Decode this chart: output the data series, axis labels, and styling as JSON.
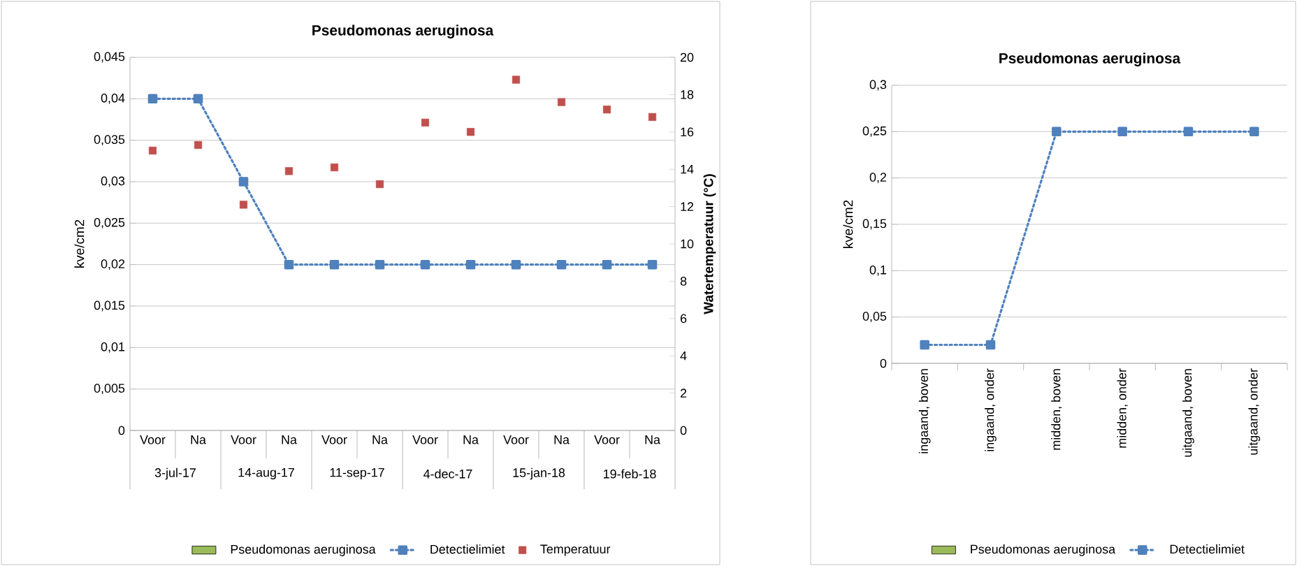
{
  "chart_data": [
    {
      "type": "line",
      "title": "Pseudomonas aeruginosa",
      "ylabel": "kve/cm2",
      "y2label": "Watertemperatuur (°C)",
      "categories": [
        "Voor",
        "Na",
        "Voor",
        "Na",
        "Voor",
        "Na",
        "Voor",
        "Na",
        "Voor",
        "Na",
        "Voor",
        "Na"
      ],
      "annotations": [
        "3-jul-17",
        "14-aug-17",
        "11-sep-17",
        "4-dec-17",
        "15-jan-18",
        "19-feb-18"
      ],
      "series": [
        {
          "name": "Pseudomonas aeruginosa",
          "type": "bar",
          "color": "#9bbb59",
          "values": [
            null,
            null,
            null,
            null,
            null,
            null,
            null,
            null,
            null,
            null,
            null,
            null
          ]
        },
        {
          "name": "Detectielimiet",
          "color": "#4f81bd",
          "marker": "square",
          "line_style": "dotted",
          "values": [
            0.04,
            0.04,
            0.03,
            0.02,
            0.02,
            0.02,
            0.02,
            0.02,
            0.02,
            0.02,
            0.02,
            0.02
          ]
        },
        {
          "name": "Temperatuur",
          "type": "scatter",
          "axis": "y2",
          "color": "#c0504d",
          "marker": "square",
          "values": [
            15.0,
            15.3,
            12.1,
            13.9,
            14.1,
            13.2,
            16.5,
            16.0,
            18.8,
            17.6,
            17.2,
            16.8
          ]
        }
      ],
      "ylim": [
        0,
        0.045
      ],
      "yticks": [
        {
          "value": 0,
          "label": "0"
        },
        {
          "value": 0.005,
          "label": "0,005"
        },
        {
          "value": 0.01,
          "label": "0,01"
        },
        {
          "value": 0.015,
          "label": "0,015"
        },
        {
          "value": 0.02,
          "label": "0,02"
        },
        {
          "value": 0.025,
          "label": "0,025"
        },
        {
          "value": 0.03,
          "label": "0,03"
        },
        {
          "value": 0.035,
          "label": "0,035"
        },
        {
          "value": 0.04,
          "label": "0,04"
        },
        {
          "value": 0.045,
          "label": "0,045"
        }
      ],
      "y2lim": [
        0,
        20
      ],
      "y2ticks": [
        0,
        2,
        4,
        6,
        8,
        10,
        12,
        14,
        16,
        18,
        20
      ],
      "grid": "y",
      "legend": "bottom"
    },
    {
      "type": "line",
      "title": "Pseudomonas aeruginosa",
      "ylabel": "kve/cm2",
      "categories": [
        "ingaand, boven",
        "ingaand, onder",
        "midden, boven",
        "midden, onder",
        "uitgaand, boven",
        "uitgaand, onder"
      ],
      "series": [
        {
          "name": "Pseudomonas aeruginosa",
          "type": "bar",
          "color": "#9bbb59",
          "values": [
            null,
            null,
            null,
            null,
            null,
            null
          ]
        },
        {
          "name": "Detectielimiet",
          "color": "#4f81bd",
          "marker": "square",
          "line_style": "dotted",
          "values": [
            0.02,
            0.02,
            0.25,
            0.25,
            0.25,
            0.25
          ]
        }
      ],
      "ylim": [
        0,
        0.3
      ],
      "yticks": [
        {
          "value": 0,
          "label": "0"
        },
        {
          "value": 0.05,
          "label": "0,05"
        },
        {
          "value": 0.1,
          "label": "0,1"
        },
        {
          "value": 0.15,
          "label": "0,15"
        },
        {
          "value": 0.2,
          "label": "0,2"
        },
        {
          "value": 0.25,
          "label": "0,25"
        },
        {
          "value": 0.3,
          "label": "0,3"
        }
      ],
      "grid": "y",
      "legend": "bottom"
    }
  ]
}
